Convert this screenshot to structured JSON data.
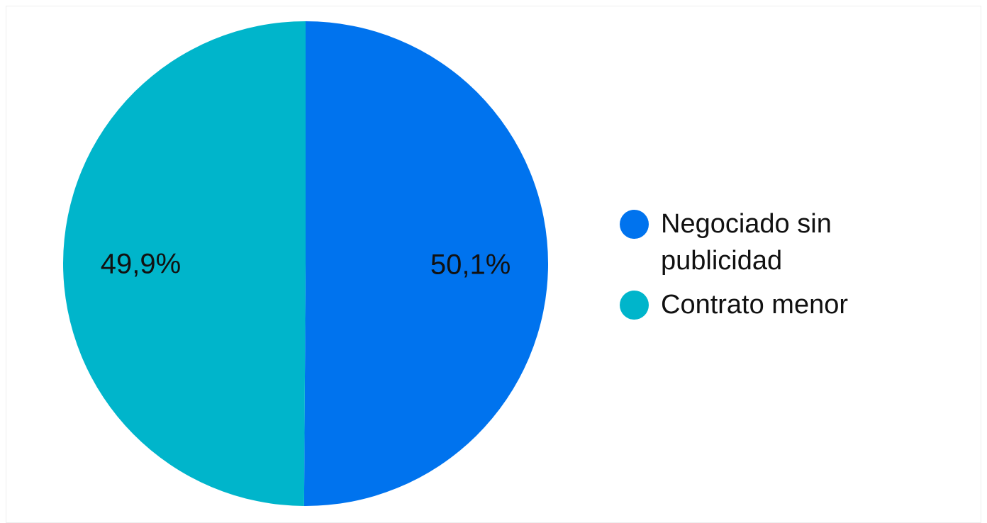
{
  "chart_data": {
    "type": "pie",
    "slices": [
      {
        "label": "Negociado sin publicidad",
        "value": 50.1,
        "display": "50,1%",
        "color": "#0073ee"
      },
      {
        "label": "Contrato menor",
        "value": 49.9,
        "display": "49,9%",
        "color": "#00b5cb"
      }
    ],
    "legend_position": "right"
  }
}
